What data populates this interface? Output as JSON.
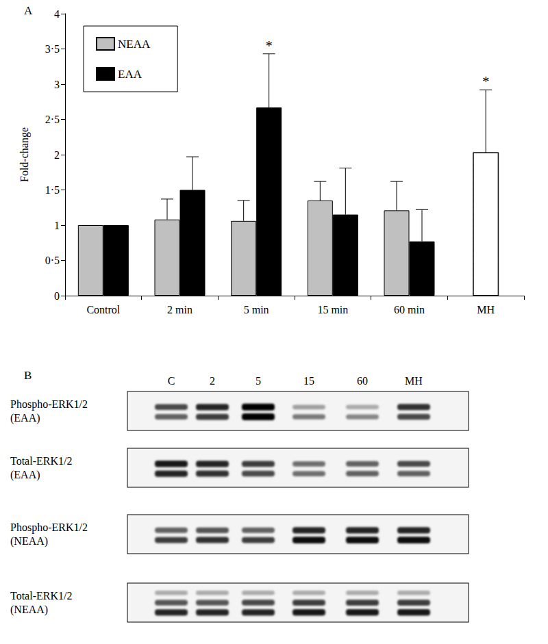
{
  "chart_data": {
    "type": "bar",
    "title": "A",
    "y_label": "Fold-change",
    "categories": [
      "Control",
      "2 min",
      "5 min",
      "15 min",
      "60 min",
      "MH"
    ],
    "series": [
      {
        "name": "NEAA",
        "color": "#c0c0c0",
        "values": [
          1,
          1.08,
          1.06,
          1.35,
          1.21,
          null
        ],
        "errors": [
          null,
          0.29,
          0.29,
          0.27,
          0.41,
          null
        ]
      },
      {
        "name": "EAA",
        "color": "#000000",
        "values": [
          1,
          1.5,
          2.67,
          1.15,
          0.77,
          null
        ],
        "errors": [
          null,
          0.47,
          0.76,
          0.66,
          0.45,
          null
        ]
      },
      {
        "color": "#ffffff",
        "marker": "hatch",
        "values": [
          null,
          null,
          null,
          null,
          null,
          2.03
        ],
        "errors": [
          null,
          null,
          null,
          null,
          null,
          0.89
        ]
      }
    ],
    "annotations": [
      {
        "text": "*",
        "x": "5 min",
        "series": 1
      },
      {
        "text": "*",
        "x": "MH",
        "series": 2
      }
    ],
    "ylim": [
      0,
      4
    ],
    "yticks": [
      0,
      {
        "value": 0.5,
        "label": "0·5"
      },
      1,
      {
        "value": 1.5,
        "label": "1·5"
      },
      2,
      {
        "value": 2.5,
        "label": "2·5"
      },
      3,
      {
        "value": 3.5,
        "label": "3·5"
      },
      4
    ],
    "grid": false,
    "legend": "top-left"
  },
  "panel_b": {
    "label": "B",
    "lanes": [
      "C",
      "2",
      "5",
      "15",
      "60",
      "MH"
    ],
    "blots": [
      {
        "label": [
          "Phospho-ERK1/2",
          "(EAA)"
        ],
        "bands": [
          [
            0.7,
            0.6
          ],
          [
            0.85,
            0.75
          ],
          [
            1,
            1
          ],
          [
            0.35,
            0.5
          ],
          [
            0.3,
            0.45
          ],
          [
            0.8,
            0.7
          ]
        ]
      },
      {
        "label": [
          "Total-ERK1/2",
          "(EAA)"
        ],
        "bands": [
          [
            0.9,
            0.85
          ],
          [
            0.85,
            0.8
          ],
          [
            0.75,
            0.7
          ],
          [
            0.55,
            0.55
          ],
          [
            0.6,
            0.6
          ],
          [
            0.7,
            0.6
          ]
        ]
      },
      {
        "label": [
          "Phospho-ERK1/2",
          "(NEAA)"
        ],
        "bands": [
          [
            0.6,
            0.75
          ],
          [
            0.65,
            0.8
          ],
          [
            0.6,
            0.75
          ],
          [
            0.85,
            0.95
          ],
          [
            0.85,
            0.95
          ],
          [
            0.85,
            0.95
          ]
        ]
      },
      {
        "label": [
          "Total-ERK1/2",
          "(NEAA)"
        ],
        "bands": [
          [
            0.3,
            0.65,
            0.85
          ],
          [
            0.3,
            0.65,
            0.85
          ],
          [
            0.3,
            0.7,
            0.85
          ],
          [
            0.3,
            0.75,
            0.9
          ],
          [
            0.3,
            0.75,
            0.9
          ],
          [
            0.3,
            0.75,
            0.9
          ]
        ]
      }
    ]
  }
}
